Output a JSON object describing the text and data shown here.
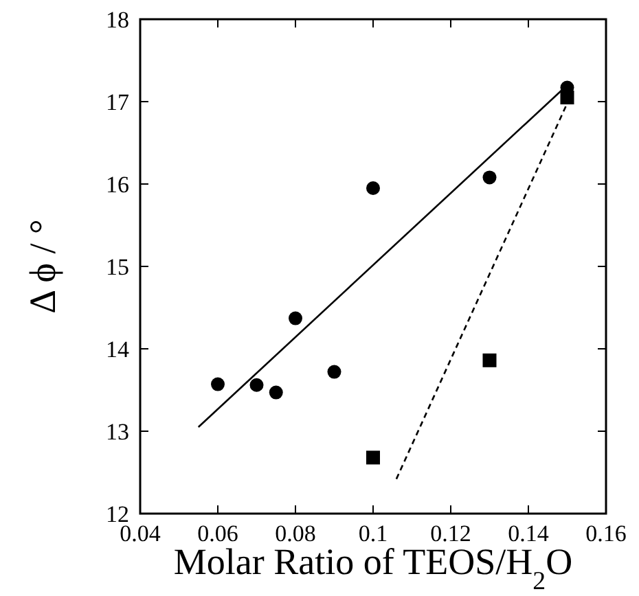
{
  "chart_data": {
    "type": "scatter",
    "xlabel": "Molar Ratio of TEOS/H$_{2}$O",
    "ylabel": "Δ ϕ / °",
    "xlim": [
      0.04,
      0.16
    ],
    "ylim": [
      12,
      18
    ],
    "xticks": [
      0.04,
      0.06,
      0.08,
      0.1,
      0.12,
      0.14,
      0.16
    ],
    "yticks": [
      12,
      13,
      14,
      15,
      16,
      17,
      18
    ],
    "grid": false,
    "series": [
      {
        "marker": "circle",
        "color": "#000000",
        "x": [
          0.06,
          0.07,
          0.075,
          0.08,
          0.09,
          0.1,
          0.13,
          0.15
        ],
        "values": [
          13.57,
          13.56,
          13.47,
          14.37,
          13.72,
          15.95,
          16.08,
          17.17
        ]
      },
      {
        "marker": "square",
        "color": "#000000",
        "x": [
          0.1,
          0.13,
          0.15
        ],
        "values": [
          12.68,
          13.86,
          17.05
        ]
      },
      {
        "type": "line",
        "marker": "none",
        "line_style": "solid",
        "color": "#000000",
        "x": [
          0.055,
          0.15
        ],
        "values": [
          13.05,
          17.2
        ]
      },
      {
        "type": "line",
        "marker": "none",
        "line_style": "dashed",
        "color": "#000000",
        "x": [
          0.106,
          0.15
        ],
        "values": [
          12.42,
          16.98
        ]
      }
    ]
  }
}
